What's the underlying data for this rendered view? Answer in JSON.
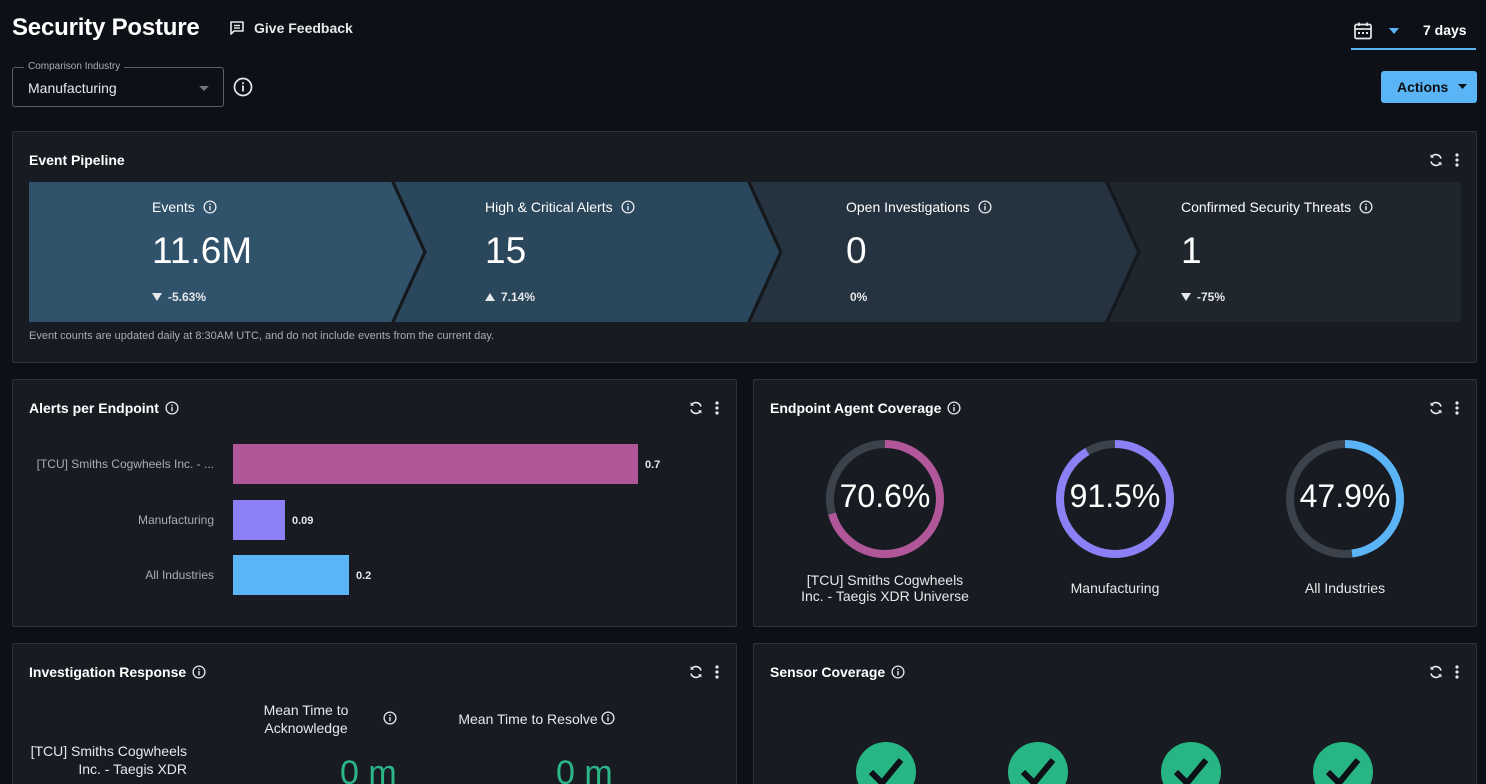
{
  "header": {
    "title": "Security Posture",
    "feedback_label": "Give Feedback",
    "date_range": "7 days"
  },
  "comparison": {
    "legend": "Comparison Industry",
    "value": "Manufacturing"
  },
  "actions_label": "Actions",
  "pipeline": {
    "title": "Event Pipeline",
    "stages": [
      {
        "label": "Events",
        "value": "11.6M",
        "change": "-5.63%",
        "direction": "down"
      },
      {
        "label": "High & Critical Alerts",
        "value": "15",
        "change": "7.14%",
        "direction": "up"
      },
      {
        "label": "Open Investigations",
        "value": "0",
        "change": "0%",
        "direction": "none"
      },
      {
        "label": "Confirmed Security Threats",
        "value": "1",
        "change": "-75%",
        "direction": "down"
      }
    ],
    "note": "Event counts are updated daily at 8:30AM UTC, and do not include events from the current day.",
    "colors": [
      "#31526b",
      "#2b475b",
      "#25323f",
      "#1f262e"
    ]
  },
  "alerts_per_endpoint": {
    "title": "Alerts per Endpoint",
    "chart_data": {
      "type": "bar",
      "orientation": "horizontal",
      "categories": [
        "[TCU] Smiths Cogwheels Inc. - ...",
        "Manufacturing",
        "All Industries"
      ],
      "values": [
        0.7,
        0.09,
        0.2
      ],
      "value_labels": [
        "0.7",
        "0.09",
        "0.2"
      ],
      "colors": [
        "#b15699",
        "#8b80f5",
        "#5ab4f5"
      ]
    }
  },
  "endpoint_coverage": {
    "title": "Endpoint Agent Coverage",
    "items": [
      {
        "pct": "70.6%",
        "value": 70.6,
        "label": "[TCU] Smiths Cogwheels Inc. - Taegis XDR Universe",
        "color": "#b15699"
      },
      {
        "pct": "91.5%",
        "value": 91.5,
        "label": "Manufacturing",
        "color": "#8b80f5"
      },
      {
        "pct": "47.9%",
        "value": 47.9,
        "label": "All Industries",
        "color": "#5ab4f5"
      }
    ]
  },
  "investigation_response": {
    "title": "Investigation Response",
    "col_ack": "Mean Time to Acknowledge",
    "col_resolve": "Mean Time to Resolve",
    "row_label": "[TCU] Smiths Cogwheels Inc. - Taegis XDR",
    "ack_value": "0 m",
    "resolve_value": "0 m"
  },
  "sensor_coverage": {
    "title": "Sensor Coverage",
    "check_count": 4,
    "check_color": "#27b584"
  },
  "icons": {
    "feedback": "feedback-icon",
    "calendar": "calendar-icon",
    "info": "info-icon",
    "refresh": "refresh-icon",
    "more": "more-vert-icon"
  }
}
